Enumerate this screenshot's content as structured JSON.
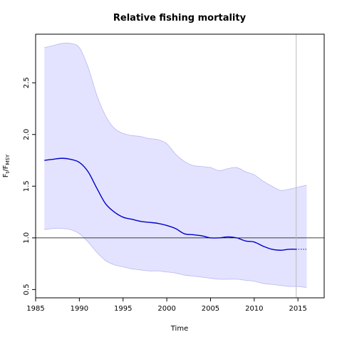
{
  "chart_data": {
    "type": "line",
    "title": "Relative fishing mortality",
    "xlabel": "Time",
    "ylabel_main": "F",
    "ylabel_sub_t": "t",
    "ylabel_sep": "/F",
    "ylabel_sub_msy": "MSY",
    "xlim": [
      1985,
      2018
    ],
    "ylim": [
      0.42,
      2.97
    ],
    "x_ticks": [
      1985,
      1990,
      1995,
      2000,
      2005,
      2010,
      2015
    ],
    "x_tick_labels": [
      "1985",
      "1990",
      "1995",
      "2000",
      "2005",
      "2010",
      "2015"
    ],
    "y_ticks": [
      0.5,
      1.0,
      1.5,
      2.0,
      2.5
    ],
    "y_tick_labels": [
      "0.5",
      "1.0",
      "1.5",
      "2.0",
      "2.5"
    ],
    "reference_line_y": 1.0,
    "vertical_line_x": 2014.8,
    "grid": false,
    "series": [
      {
        "role": "estimate",
        "color": "#0000cc",
        "x": [
          1986,
          1987,
          1988,
          1989,
          1990,
          1991,
          1992,
          1993,
          1994,
          1995,
          1996,
          1997,
          1998,
          1999,
          2000,
          2001,
          2002,
          2003,
          2004,
          2005,
          2006,
          2007,
          2008,
          2009,
          2010,
          2011,
          2012,
          2013,
          2014,
          2014.8
        ],
        "y": [
          1.75,
          1.76,
          1.77,
          1.76,
          1.73,
          1.64,
          1.48,
          1.33,
          1.25,
          1.2,
          1.18,
          1.16,
          1.15,
          1.14,
          1.12,
          1.09,
          1.04,
          1.03,
          1.02,
          1.0,
          1.0,
          1.01,
          1.0,
          0.97,
          0.96,
          0.92,
          0.89,
          0.88,
          0.89,
          0.89
        ]
      },
      {
        "role": "prediction",
        "color": "#0000cc",
        "dash": "dotted",
        "x": [
          2014.8,
          2016
        ],
        "y": [
          0.89,
          0.89
        ]
      }
    ],
    "confidence_band": {
      "color": "#e3e3ff",
      "stroke": "#b8b8f0",
      "x": [
        1986,
        1987,
        1988,
        1989,
        1990,
        1991,
        1992,
        1993,
        1994,
        1995,
        1996,
        1997,
        1998,
        1999,
        2000,
        2001,
        2002,
        2003,
        2004,
        2005,
        2006,
        2007,
        2008,
        2009,
        2010,
        2011,
        2012,
        2013,
        2014,
        2015,
        2016
      ],
      "upper": [
        2.84,
        2.86,
        2.88,
        2.88,
        2.84,
        2.65,
        2.38,
        2.18,
        2.06,
        2.01,
        1.99,
        1.98,
        1.96,
        1.95,
        1.91,
        1.81,
        1.74,
        1.7,
        1.69,
        1.68,
        1.65,
        1.67,
        1.68,
        1.64,
        1.61,
        1.55,
        1.5,
        1.46,
        1.47,
        1.49,
        1.51
      ],
      "lower": [
        1.08,
        1.09,
        1.09,
        1.08,
        1.04,
        0.96,
        0.86,
        0.78,
        0.74,
        0.72,
        0.7,
        0.69,
        0.68,
        0.68,
        0.67,
        0.66,
        0.64,
        0.63,
        0.62,
        0.61,
        0.6,
        0.6,
        0.6,
        0.59,
        0.58,
        0.56,
        0.55,
        0.54,
        0.53,
        0.53,
        0.52
      ]
    }
  }
}
